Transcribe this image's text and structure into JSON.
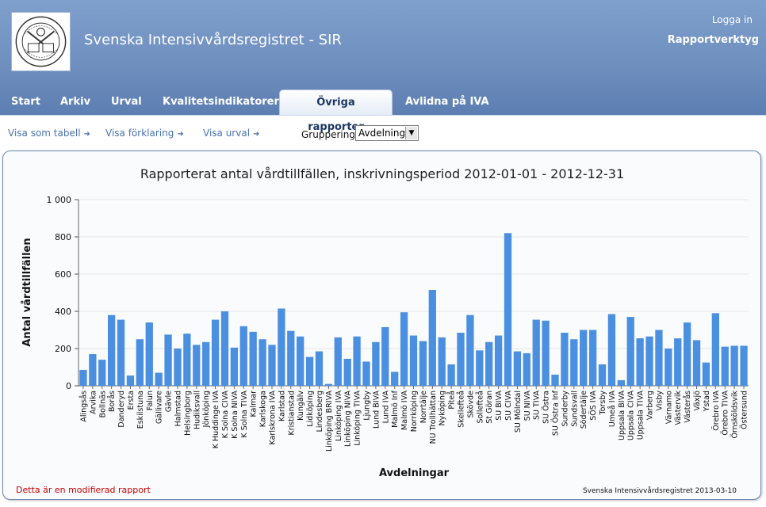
{
  "header": {
    "site_title": "Svenska Intensivvårdsregistret - SIR",
    "login_label": "Logga in",
    "tool_name": "Rapportverktyg",
    "logo_text": [
      "SOCIETAS SVECICA",
      "SF",
      "AI"
    ]
  },
  "nav": {
    "tabs": [
      {
        "label": "Start"
      },
      {
        "label": "Arkiv"
      },
      {
        "label": "Urval"
      },
      {
        "label": "Kvalitetsindikatorer"
      },
      {
        "label": "Övriga rapporter",
        "active": true
      },
      {
        "label": "Avlidna på IVA"
      }
    ]
  },
  "toolbar": {
    "show_table": "Visa som tabell",
    "show_explanation": "Visa förklaring",
    "show_selection": "Visa urval",
    "grouping_label": "Gruppering",
    "grouping_value": "Avdelning"
  },
  "colors": {
    "bar": "#4a8fe0",
    "header": "#6f8fbf",
    "note": "#cc0000"
  },
  "footer": {
    "modified_note": "Detta är en modifierad rapport",
    "source": "Svenska Intensivvårdsregistret 2013-03-10"
  },
  "chart_data": {
    "type": "bar",
    "title": "Rapporterat antal vårdtillfällen, inskrivningsperiod 2012-01-01 - 2012-12-31",
    "xlabel": "Avdelningar",
    "ylabel": "Antal vårdtillfällen",
    "ylim": [
      0,
      1000
    ],
    "yticks": [
      0,
      200,
      400,
      600,
      800,
      1000
    ],
    "ytick_labels": [
      "0",
      "200",
      "400",
      "600",
      "800",
      "1 000"
    ],
    "grid": true,
    "categories": [
      "Alingsås",
      "Arvika",
      "Bollnäs",
      "Borås",
      "Danderyd",
      "Ersta",
      "Eskilstuna",
      "Falun",
      "Gällivare",
      "Gävle",
      "Halmstad",
      "Helsingborg",
      "Hudiksvall",
      "Jönköping",
      "K Huddinge IVA",
      "K Solna CIVA",
      "K Solna NIVA",
      "K Solna TIVA",
      "Kalmar",
      "Karlskoga",
      "Karlskrona IVA",
      "Karlstad",
      "Kristianstad",
      "Kungälv",
      "Lidköping",
      "Lindesberg",
      "Linköping BRIVA",
      "Linköping IVA",
      "Linköping NIVA",
      "Linköping TIVA",
      "Ljungby",
      "Lund BIVA",
      "Lund IVA",
      "Malmö Inf",
      "Malmö IVA",
      "Norrköping",
      "Norrtälje",
      "NU Trollhättan",
      "Nyköping",
      "Piteå",
      "Skellefteå",
      "Skövde",
      "Sollefteå",
      "St Göran",
      "SU BIVA",
      "SU CIVA",
      "SU Mölndal",
      "SU NIVA",
      "SU TIVA",
      "SU Östra",
      "SU Östra Inf",
      "Sunderby",
      "Sundsvall",
      "Södertälje",
      "SÖS IVA",
      "Torsby",
      "Umeå IVA",
      "Uppsala BIVA",
      "Uppsala CIVA",
      "Uppsala TIVA",
      "Varberg",
      "Visby",
      "Värnamo",
      "Västervik",
      "Västerås",
      "Växjö",
      "Ystad",
      "Örebro IVA",
      "Örebro TIVA",
      "Örnsköldsvik",
      "Östersund"
    ],
    "values": [
      85,
      170,
      140,
      380,
      355,
      55,
      250,
      340,
      70,
      275,
      200,
      280,
      220,
      235,
      355,
      400,
      205,
      320,
      290,
      250,
      220,
      415,
      295,
      265,
      155,
      185,
      10,
      260,
      145,
      265,
      130,
      235,
      315,
      75,
      395,
      270,
      240,
      515,
      260,
      115,
      285,
      380,
      190,
      235,
      270,
      820,
      185,
      175,
      355,
      350,
      60,
      285,
      250,
      300,
      300,
      115,
      385,
      30,
      370,
      255,
      265,
      300,
      200,
      255,
      340,
      245,
      125,
      390,
      210,
      215,
      215
    ]
  }
}
